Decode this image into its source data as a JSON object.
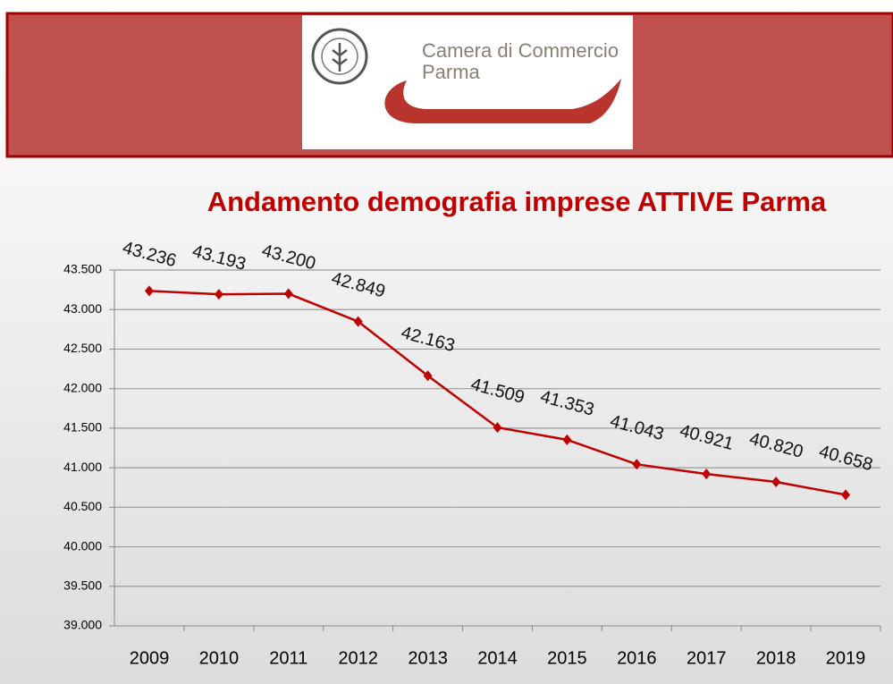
{
  "header": {
    "logo_line1": "Camera di Commercio",
    "logo_line2": "Parma"
  },
  "chart_data": {
    "type": "line",
    "title": "Andamento demografia imprese ATTIVE Parma",
    "categories": [
      "2009",
      "2010",
      "2011",
      "2012",
      "2013",
      "2014",
      "2015",
      "2016",
      "2017",
      "2018",
      "2019"
    ],
    "series": [
      {
        "name": "Imprese attive",
        "color": "#c00000",
        "values": [
          43236,
          43193,
          43200,
          42849,
          42163,
          41509,
          41353,
          41043,
          40921,
          40820,
          40658
        ],
        "value_labels": [
          "43.236",
          "43.193",
          "43.200",
          "42.849",
          "42.163",
          "41.509",
          "41.353",
          "41.043",
          "40.921",
          "40.820",
          "40.658"
        ]
      }
    ],
    "ylim": [
      39000,
      43500
    ],
    "yticks": [
      {
        "value": 39000,
        "label": "39.000"
      },
      {
        "value": 39500,
        "label": "39.500"
      },
      {
        "value": 40000,
        "label": "40.000"
      },
      {
        "value": 40500,
        "label": "40.500"
      },
      {
        "value": 41000,
        "label": "41.000"
      },
      {
        "value": 41500,
        "label": "41.500"
      },
      {
        "value": 42000,
        "label": "42.000"
      },
      {
        "value": 42500,
        "label": "42.500"
      },
      {
        "value": 43000,
        "label": "43.000"
      },
      {
        "value": 43500,
        "label": "43.500"
      }
    ],
    "grid": true
  }
}
